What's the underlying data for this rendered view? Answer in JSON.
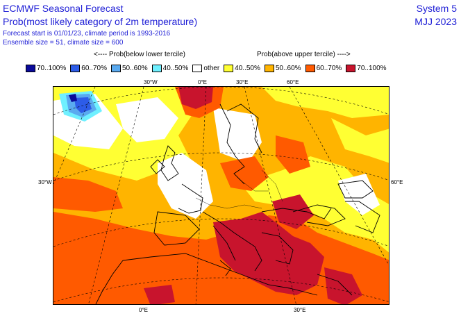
{
  "header": {
    "title": "ECMWF Seasonal Forecast",
    "subtitle": "Prob(most likely category of 2m temperature)",
    "forecast_info": "Forecast start is 01/01/23, climate period is 1993-2016",
    "ensemble_info": "Ensemble size = 51, climate size = 600",
    "system": "System 5",
    "period": "MJJ 2023"
  },
  "legend": {
    "below_heading": "<---- Prob(below lower tercile)",
    "above_heading": "Prob(above upper tercile) ---->",
    "items": [
      {
        "label": "70..100%",
        "color": "#0a0a9a"
      },
      {
        "label": "60..70%",
        "color": "#2d5ce8"
      },
      {
        "label": "50..60%",
        "color": "#5aaaf0"
      },
      {
        "label": "40..50%",
        "color": "#6ff0ff"
      },
      {
        "label": "other",
        "color": "#ffffff"
      },
      {
        "label": "40..50%",
        "color": "#ffff33"
      },
      {
        "label": "50..60%",
        "color": "#ffb400"
      },
      {
        "label": "60..70%",
        "color": "#ff5a00"
      },
      {
        "label": "70..100%",
        "color": "#c8142d"
      }
    ]
  },
  "map": {
    "lon_labels": {
      "top_30w": "30°W",
      "top_0": "0°E",
      "top_30e": "30°E",
      "top_60e": "60°E",
      "left_30w": "30°W",
      "right_60e": "60°E",
      "bottom_0": "0°E",
      "bottom_30e": "30°E"
    }
  }
}
